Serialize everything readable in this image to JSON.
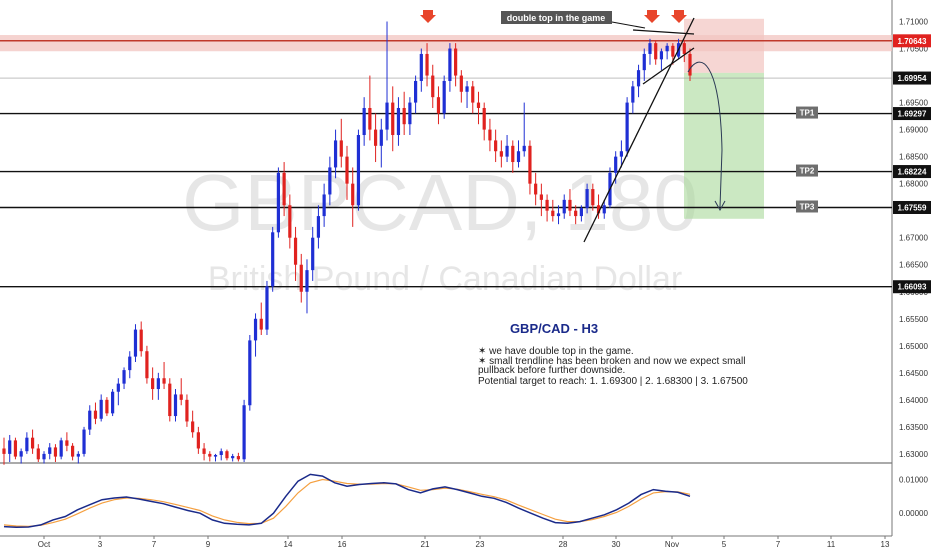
{
  "chart_data": {
    "type": "candlestick",
    "symbol_watermark": "GBPCAD, 180",
    "name_watermark": "British Pound / Canadian Dollar",
    "annotation_label": "double top in the game",
    "note": {
      "title": "GBP/CAD - H3",
      "lines": [
        "✶ we have double top in the game.",
        "✶ small trendline has been broken and now we expect small",
        "pullback before further downside.",
        "Potential target to reach: 1. 1.69300 | 2. 1.68300 | 3. 1.67500"
      ]
    },
    "ylim": [
      1.6285,
      1.7125
    ],
    "y_ticks": [
      "1.71000",
      "1.70500",
      "1.70000",
      "1.69500",
      "1.69000",
      "1.68500",
      "1.68000",
      "1.67500",
      "1.67000",
      "1.66500",
      "1.66000",
      "1.65500",
      "1.65000",
      "1.64500",
      "1.64000",
      "1.63500",
      "1.63000"
    ],
    "x_ticks": [
      "Oct",
      "3",
      "7",
      "9",
      "14",
      "16",
      "21",
      "23",
      "28",
      "30",
      "Nov",
      "5",
      "7",
      "11",
      "13"
    ],
    "price_tags": [
      {
        "value": "1.70643",
        "level": 1.70643,
        "style": "red"
      },
      {
        "value": "1.69954",
        "level": 1.69954,
        "style": "dark"
      },
      {
        "value": "1.69297",
        "level": 1.69297,
        "style": "dark"
      },
      {
        "value": "1.68224",
        "level": 1.68224,
        "style": "dark"
      },
      {
        "value": "1.67559",
        "level": 1.67559,
        "style": "dark"
      },
      {
        "value": "1.66093",
        "level": 1.66093,
        "style": "dark"
      }
    ],
    "horizontal_levels": [
      1.70643,
      1.69297,
      1.68224,
      1.67559,
      1.66093
    ],
    "resistance_zone": [
      1.7045,
      1.7075
    ],
    "targets": [
      {
        "label": "TP1",
        "level": 1.69297
      },
      {
        "label": "TP2",
        "level": 1.68224
      },
      {
        "label": "TP3",
        "level": 1.67559
      }
    ],
    "trade_box": {
      "entry": 1.7005,
      "stop": 1.7105,
      "target": 1.6735
    },
    "candles": [
      [
        1.631,
        1.633,
        1.628,
        1.63
      ],
      [
        1.63,
        1.6335,
        1.6285,
        1.6325
      ],
      [
        1.6325,
        1.633,
        1.629,
        1.6295
      ],
      [
        1.6295,
        1.631,
        1.6282,
        1.6305
      ],
      [
        1.6305,
        1.634,
        1.63,
        1.633
      ],
      [
        1.633,
        1.6345,
        1.63,
        1.631
      ],
      [
        1.631,
        1.6318,
        1.6285,
        1.629
      ],
      [
        1.629,
        1.6305,
        1.6282,
        1.63
      ],
      [
        1.63,
        1.632,
        1.629,
        1.6312
      ],
      [
        1.6312,
        1.6318,
        1.6285,
        1.6295
      ],
      [
        1.6295,
        1.633,
        1.629,
        1.6325
      ],
      [
        1.6325,
        1.634,
        1.6305,
        1.6315
      ],
      [
        1.6315,
        1.632,
        1.6288,
        1.6295
      ],
      [
        1.6295,
        1.6305,
        1.6282,
        1.63
      ],
      [
        1.63,
        1.635,
        1.6295,
        1.6345
      ],
      [
        1.6345,
        1.639,
        1.6335,
        1.638
      ],
      [
        1.638,
        1.6395,
        1.6355,
        1.6365
      ],
      [
        1.6365,
        1.641,
        1.636,
        1.64
      ],
      [
        1.64,
        1.6405,
        1.637,
        1.6375
      ],
      [
        1.6375,
        1.642,
        1.637,
        1.6415
      ],
      [
        1.6415,
        1.644,
        1.639,
        1.643
      ],
      [
        1.643,
        1.646,
        1.642,
        1.6455
      ],
      [
        1.6455,
        1.649,
        1.644,
        1.648
      ],
      [
        1.648,
        1.654,
        1.647,
        1.653
      ],
      [
        1.653,
        1.6545,
        1.648,
        1.649
      ],
      [
        1.649,
        1.65,
        1.643,
        1.644
      ],
      [
        1.644,
        1.646,
        1.64,
        1.642
      ],
      [
        1.642,
        1.645,
        1.64,
        1.644
      ],
      [
        1.644,
        1.647,
        1.642,
        1.643
      ],
      [
        1.643,
        1.644,
        1.636,
        1.637
      ],
      [
        1.637,
        1.642,
        1.636,
        1.641
      ],
      [
        1.641,
        1.644,
        1.639,
        1.64
      ],
      [
        1.64,
        1.641,
        1.635,
        1.636
      ],
      [
        1.636,
        1.638,
        1.633,
        1.634
      ],
      [
        1.634,
        1.635,
        1.63,
        1.631
      ],
      [
        1.631,
        1.632,
        1.6288,
        1.63
      ],
      [
        1.63,
        1.6305,
        1.6286,
        1.6295
      ],
      [
        1.6295,
        1.63,
        1.6286,
        1.6298
      ],
      [
        1.6298,
        1.631,
        1.6288,
        1.6305
      ],
      [
        1.6305,
        1.6308,
        1.6288,
        1.6292
      ],
      [
        1.6292,
        1.63,
        1.6286,
        1.6296
      ],
      [
        1.6296,
        1.6302,
        1.6286,
        1.629
      ],
      [
        1.629,
        1.64,
        1.6285,
        1.639
      ],
      [
        1.639,
        1.652,
        1.638,
        1.651
      ],
      [
        1.651,
        1.656,
        1.648,
        1.655
      ],
      [
        1.655,
        1.658,
        1.652,
        1.653
      ],
      [
        1.653,
        1.662,
        1.652,
        1.661
      ],
      [
        1.661,
        1.672,
        1.66,
        1.671
      ],
      [
        1.671,
        1.683,
        1.67,
        1.682
      ],
      [
        1.682,
        1.684,
        1.674,
        1.676
      ],
      [
        1.676,
        1.678,
        1.668,
        1.67
      ],
      [
        1.67,
        1.672,
        1.662,
        1.665
      ],
      [
        1.665,
        1.667,
        1.658,
        1.66
      ],
      [
        1.66,
        1.666,
        1.656,
        1.664
      ],
      [
        1.664,
        1.672,
        1.662,
        1.67
      ],
      [
        1.67,
        1.676,
        1.668,
        1.674
      ],
      [
        1.674,
        1.68,
        1.672,
        1.678
      ],
      [
        1.678,
        1.685,
        1.676,
        1.683
      ],
      [
        1.683,
        1.69,
        1.681,
        1.688
      ],
      [
        1.688,
        1.692,
        1.683,
        1.685
      ],
      [
        1.685,
        1.687,
        1.677,
        1.68
      ],
      [
        1.68,
        1.683,
        1.672,
        1.676
      ],
      [
        1.676,
        1.69,
        1.675,
        1.689
      ],
      [
        1.689,
        1.696,
        1.687,
        1.694
      ],
      [
        1.694,
        1.7,
        1.688,
        1.69
      ],
      [
        1.69,
        1.693,
        1.684,
        1.687
      ],
      [
        1.687,
        1.692,
        1.683,
        1.69
      ],
      [
        1.69,
        1.71,
        1.688,
        1.695
      ],
      [
        1.695,
        1.698,
        1.686,
        1.689
      ],
      [
        1.689,
        1.696,
        1.687,
        1.694
      ],
      [
        1.694,
        1.697,
        1.689,
        1.691
      ],
      [
        1.691,
        1.696,
        1.689,
        1.695
      ],
      [
        1.695,
        1.7,
        1.693,
        1.699
      ],
      [
        1.699,
        1.705,
        1.697,
        1.704
      ],
      [
        1.704,
        1.706,
        1.698,
        1.7
      ],
      [
        1.7,
        1.702,
        1.694,
        1.696
      ],
      [
        1.696,
        1.698,
        1.691,
        1.693
      ],
      [
        1.693,
        1.7,
        1.692,
        1.699
      ],
      [
        1.699,
        1.706,
        1.697,
        1.705
      ],
      [
        1.705,
        1.706,
        1.698,
        1.7
      ],
      [
        1.7,
        1.701,
        1.695,
        1.697
      ],
      [
        1.697,
        1.699,
        1.694,
        1.698
      ],
      [
        1.698,
        1.699,
        1.693,
        1.695
      ],
      [
        1.695,
        1.697,
        1.691,
        1.694
      ],
      [
        1.694,
        1.695,
        1.688,
        1.69
      ],
      [
        1.69,
        1.692,
        1.686,
        1.688
      ],
      [
        1.688,
        1.69,
        1.684,
        1.686
      ],
      [
        1.686,
        1.688,
        1.683,
        1.685
      ],
      [
        1.685,
        1.689,
        1.684,
        1.687
      ],
      [
        1.687,
        1.688,
        1.682,
        1.684
      ],
      [
        1.684,
        1.688,
        1.683,
        1.686
      ],
      [
        1.686,
        1.695,
        1.685,
        1.687
      ],
      [
        1.687,
        1.688,
        1.678,
        1.68
      ],
      [
        1.68,
        1.682,
        1.676,
        1.678
      ],
      [
        1.678,
        1.68,
        1.674,
        1.677
      ],
      [
        1.677,
        1.678,
        1.673,
        1.675
      ],
      [
        1.675,
        1.677,
        1.673,
        1.674
      ],
      [
        1.674,
        1.676,
        1.6725,
        1.6745
      ],
      [
        1.6745,
        1.678,
        1.6735,
        1.677
      ],
      [
        1.677,
        1.679,
        1.674,
        1.675
      ],
      [
        1.675,
        1.676,
        1.6725,
        1.674
      ],
      [
        1.674,
        1.676,
        1.673,
        1.6755
      ],
      [
        1.6755,
        1.68,
        1.6745,
        1.679
      ],
      [
        1.679,
        1.68,
        1.675,
        1.676
      ],
      [
        1.676,
        1.678,
        1.6735,
        1.6745
      ],
      [
        1.6745,
        1.677,
        1.6735,
        1.676
      ],
      [
        1.676,
        1.683,
        1.6755,
        1.682
      ],
      [
        1.682,
        1.686,
        1.68,
        1.685
      ],
      [
        1.685,
        1.688,
        1.683,
        1.686
      ],
      [
        1.686,
        1.696,
        1.685,
        1.695
      ],
      [
        1.695,
        1.699,
        1.693,
        1.698
      ],
      [
        1.698,
        1.702,
        1.696,
        1.701
      ],
      [
        1.701,
        1.705,
        1.699,
        1.704
      ],
      [
        1.704,
        1.7068,
        1.702,
        1.706
      ],
      [
        1.706,
        1.7065,
        1.702,
        1.703
      ],
      [
        1.703,
        1.705,
        1.701,
        1.7045
      ],
      [
        1.7045,
        1.706,
        1.703,
        1.7055
      ],
      [
        1.7055,
        1.706,
        1.702,
        1.7035
      ],
      [
        1.7035,
        1.7068,
        1.703,
        1.706
      ],
      [
        1.706,
        1.7066,
        1.7025,
        1.704
      ],
      [
        1.704,
        1.705,
        1.699,
        1.7
      ]
    ],
    "oscillator": {
      "ylim": [
        -0.005,
        0.014
      ],
      "y_ticks": [
        "0.01000",
        "0.00000"
      ],
      "fast": [
        -0.004,
        -0.0042,
        -0.0041,
        -0.0035,
        -0.002,
        -0.001,
        0.001,
        0.0025,
        0.004,
        0.0045,
        0.0048,
        0.0042,
        0.0035,
        0.0028,
        0.0018,
        0.0008,
        0.0,
        -0.002,
        -0.003,
        -0.0033,
        -0.0035,
        -0.003,
        0.0,
        0.005,
        0.0095,
        0.0115,
        0.011,
        0.009,
        0.008,
        0.0085,
        0.0088,
        0.009,
        0.0087,
        0.007,
        0.006,
        0.0072,
        0.0078,
        0.007,
        0.006,
        0.005,
        0.0044,
        0.0032,
        0.0015,
        0.0,
        -0.0015,
        -0.0028,
        -0.003,
        -0.0025,
        -0.0015,
        -0.0005,
        0.001,
        0.003,
        0.0055,
        0.007,
        0.0065,
        0.0062,
        0.005
      ],
      "slow": [
        -0.0035,
        -0.0038,
        -0.0039,
        -0.0036,
        -0.0028,
        -0.0018,
        -0.0002,
        0.0015,
        0.003,
        0.004,
        0.0045,
        0.0044,
        0.004,
        0.0034,
        0.0026,
        0.0017,
        0.0008,
        -0.0008,
        -0.002,
        -0.0027,
        -0.0031,
        -0.003,
        -0.0015,
        0.002,
        0.006,
        0.009,
        0.01,
        0.0095,
        0.0088,
        0.0086,
        0.0086,
        0.0088,
        0.0087,
        0.0078,
        0.0068,
        0.007,
        0.0074,
        0.0071,
        0.0064,
        0.0056,
        0.0049,
        0.0039,
        0.0024,
        0.001,
        -0.0004,
        -0.0018,
        -0.0025,
        -0.0025,
        -0.0019,
        -0.001,
        0.0002,
        0.002,
        0.0042,
        0.006,
        0.0064,
        0.0063,
        0.0056
      ]
    },
    "colors": {
      "up": "#1f2fd4",
      "down": "#e0221f",
      "level": "#111111",
      "zone": "#f2c4c0",
      "trade_green": "#a8d89a",
      "oscillator_fast": "#1a2a8a",
      "oscillator_slow": "#f5a040"
    }
  }
}
